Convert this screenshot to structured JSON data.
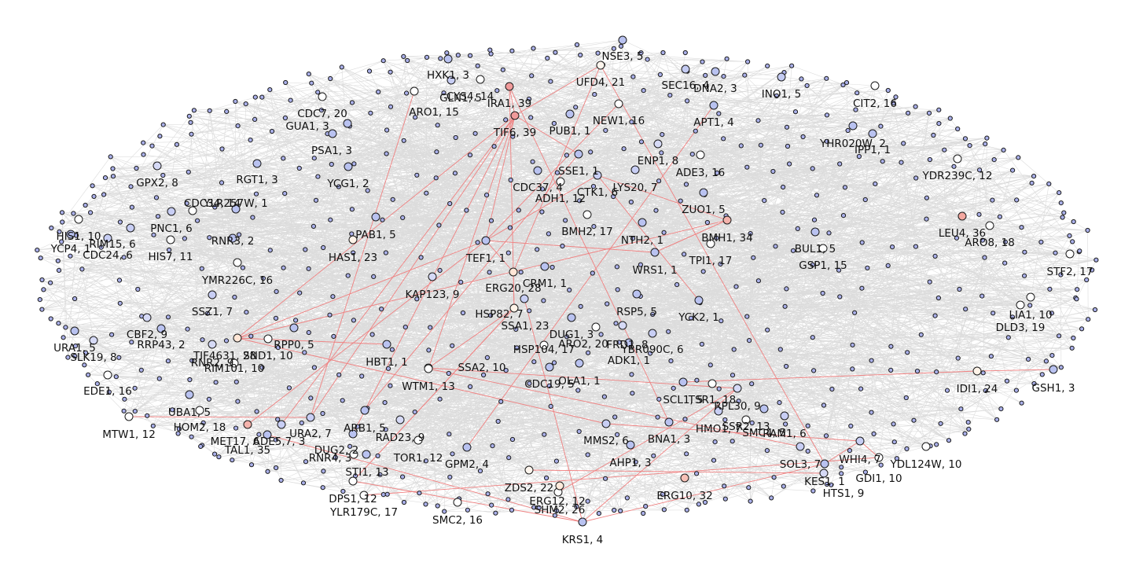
{
  "colors": {
    "background": "#ffffff",
    "edge_gray": "#dcdcdc",
    "edge_red": "#f08080",
    "node_stroke": "#1a1a1a",
    "small_node": "#aab0ea",
    "label_text": "#111111"
  },
  "graph": {
    "labeled_nodes": [
      {
        "label": "NSE3, 5",
        "fill": "#b9c2f0"
      },
      {
        "label": "HXK1, 3",
        "fill": "#b9c2f0"
      },
      {
        "label": "UFD4, 21",
        "fill": "#fff6ee"
      },
      {
        "label": "CYS4, 14",
        "fill": "#ffffff"
      },
      {
        "label": "SEC16, 4",
        "fill": "#c4cbf2"
      },
      {
        "label": "DNA2, 3",
        "fill": "#b9c2f0"
      },
      {
        "label": "GLN1, 5",
        "fill": "#c8cef4"
      },
      {
        "label": "IRA1, 39",
        "fill": "#f09a9a"
      },
      {
        "label": "INO1, 5",
        "fill": "#c4cbf2"
      },
      {
        "label": "ARO1, 15",
        "fill": "#ffffff"
      },
      {
        "label": "CIT2, 16",
        "fill": "#ffffff"
      },
      {
        "label": "CDC7, 20",
        "fill": "#ffffff"
      },
      {
        "label": "NEW1, 16",
        "fill": "#ffffff"
      },
      {
        "label": "APT1, 4",
        "fill": "#b9c2f0"
      },
      {
        "label": "PUB1, 1",
        "fill": "#b9c2f0"
      },
      {
        "label": "GUA1, 3",
        "fill": "#b9c2f0"
      },
      {
        "label": "TIF6, 39",
        "fill": "#f09a9a"
      },
      {
        "label": "YHR020W, 2",
        "fill": "#b9c2f0"
      },
      {
        "label": "IPP1, 1",
        "fill": "#b9c2f0"
      },
      {
        "label": "PSA1, 3",
        "fill": "#b9c2f0"
      },
      {
        "label": "ENP1, 8",
        "fill": "#d6daf6"
      },
      {
        "label": "ADE3, 16",
        "fill": "#ffffff"
      },
      {
        "label": "SSE1, 1",
        "fill": "#b9c2f0"
      },
      {
        "label": "GPX2, 8",
        "fill": "#d6daf6"
      },
      {
        "label": "RGT1, 3",
        "fill": "#b9c2f0"
      },
      {
        "label": "YDR239C, 12",
        "fill": "#ffffff"
      },
      {
        "label": "LYS20, 7",
        "fill": "#c8cef4"
      },
      {
        "label": "YCG1, 2",
        "fill": "#b9c2f0"
      },
      {
        "label": "CDC37, 4",
        "fill": "#b9c2f0"
      },
      {
        "label": "CTK1, 6",
        "fill": "#c8cef4"
      },
      {
        "label": "ADH1, 12",
        "fill": "#ffffff"
      },
      {
        "label": "YLR257W, 1",
        "fill": "#b9c2f0"
      },
      {
        "label": "ZUO1, 5",
        "fill": "#b9c2f0"
      },
      {
        "label": "CDC34, 14",
        "fill": "#ffffff"
      },
      {
        "label": "PNC1, 6",
        "fill": "#c8cef4"
      },
      {
        "label": "BMH2, 17",
        "fill": "#ffffff"
      },
      {
        "label": "HIS1, 10",
        "fill": "#ffffff"
      },
      {
        "label": "BMH1, 34",
        "fill": "#f4b3ac"
      },
      {
        "label": "LEU4, 36",
        "fill": "#f4a8a0"
      },
      {
        "label": "RIM15, 6",
        "fill": "#c8cef4"
      },
      {
        "label": "RNR3, 2",
        "fill": "#b9c2f0"
      },
      {
        "label": "PAB1, 5",
        "fill": "#b9c2f0"
      },
      {
        "label": "NTH2, 1",
        "fill": "#b9c2f0"
      },
      {
        "label": "ARO8, 18",
        "fill": "#ffffff"
      },
      {
        "label": "YCP4, 1",
        "fill": "#b9c2f0"
      },
      {
        "label": "BUL1, 5",
        "fill": "#b9c2f0"
      },
      {
        "label": "CDC24, 6",
        "fill": "#c8cef4"
      },
      {
        "label": "HIS7, 11",
        "fill": "#ffffff"
      },
      {
        "label": "HAS1, 23",
        "fill": "#fff3e8"
      },
      {
        "label": "TEF1, 1",
        "fill": "#b9c2f0"
      },
      {
        "label": "TPI1, 17",
        "fill": "#ffffff"
      },
      {
        "label": "GSP1, 15",
        "fill": "#ffffff"
      },
      {
        "label": "STF2, 17",
        "fill": "#ffffff"
      },
      {
        "label": "WRS1, 1",
        "fill": "#b9c2f0"
      },
      {
        "label": "YMR226C, 16",
        "fill": "#ffffff"
      },
      {
        "label": "CRM1, 1",
        "fill": "#b9c2f0"
      },
      {
        "label": "ERG20, 28",
        "fill": "#ffe6d6"
      },
      {
        "label": "KAP123, 9",
        "fill": "#d6daf6"
      },
      {
        "label": "SSZ1, 7",
        "fill": "#c8cef4"
      },
      {
        "label": "RSP5, 5",
        "fill": "#b9c2f0"
      },
      {
        "label": "HSP82, 7",
        "fill": "#c8cef4"
      },
      {
        "label": "YCK2, 1",
        "fill": "#b9c2f0"
      },
      {
        "label": "LIA1, 10",
        "fill": "#ffffff"
      },
      {
        "label": "SSA1, 23",
        "fill": "#fff3e8"
      },
      {
        "label": "DLD3, 19",
        "fill": "#ffffff"
      },
      {
        "label": "CBF2, 9",
        "fill": "#d6daf6"
      },
      {
        "label": "RRP43, 2",
        "fill": "#b9c2f0"
      },
      {
        "label": "DUG1, 3",
        "fill": "#b9c2f0"
      },
      {
        "label": "URA1, 5",
        "fill": "#b9c2f0"
      },
      {
        "label": "RPP0, 5",
        "fill": "#b9c2f0"
      },
      {
        "label": "ARO2, 20",
        "fill": "#ffffff"
      },
      {
        "label": "FRD1, 8",
        "fill": "#d6daf6"
      },
      {
        "label": "TIF4631, 28",
        "fill": "#ffe6d6"
      },
      {
        "label": "SND1, 10",
        "fill": "#ffffff"
      },
      {
        "label": "HSP104, 17",
        "fill": "#ffffff"
      },
      {
        "label": "YBR090C, 6",
        "fill": "#c8cef4"
      },
      {
        "label": "SLK19, 8",
        "fill": "#d6daf6"
      },
      {
        "label": "RNR2, 9",
        "fill": "#d6daf6"
      },
      {
        "label": "HBT1, 1",
        "fill": "#b9c2f0"
      },
      {
        "label": "ADK1, 1",
        "fill": "#b9c2f0"
      },
      {
        "label": "RIM101, 10",
        "fill": "#ffffff"
      },
      {
        "label": "SSA2, 10",
        "fill": "#ffffff"
      },
      {
        "label": "IDI1, 24",
        "fill": "#fff3e8"
      },
      {
        "label": "GSH1, 3",
        "fill": "#b9c2f0"
      },
      {
        "label": "EDE1, 16",
        "fill": "#ffffff"
      },
      {
        "label": "WTM1, 13",
        "fill": "#ffffff"
      },
      {
        "label": "CDC19, 5",
        "fill": "#b9c2f0"
      },
      {
        "label": "OLA1, 1",
        "fill": "#b9c2f0"
      },
      {
        "label": "SCL1, 5",
        "fill": "#b9c2f0"
      },
      {
        "label": "TSR1, 18",
        "fill": "#ffffff"
      },
      {
        "label": "RPL30, 9",
        "fill": "#d6daf6"
      },
      {
        "label": "UBA1, 5",
        "fill": "#b9c2f0"
      },
      {
        "label": "MTW1, 12",
        "fill": "#ffffff"
      },
      {
        "label": "HOM2, 18",
        "fill": "#ffffff"
      },
      {
        "label": "ARB1, 5",
        "fill": "#b9c2f0"
      },
      {
        "label": "HMO1, 7",
        "fill": "#c8cef4"
      },
      {
        "label": "SSR2, 13",
        "fill": "#ffffff"
      },
      {
        "label": "SMC4, 5",
        "fill": "#b9c2f0"
      },
      {
        "label": "RAM1, 6",
        "fill": "#c8cef4"
      },
      {
        "label": "URA2, 7",
        "fill": "#c8cef4"
      },
      {
        "label": "MET17, 6",
        "fill": "#c8cef4"
      },
      {
        "label": "ADE5,7, 3",
        "fill": "#b9c2f0"
      },
      {
        "label": "RAD23, 9",
        "fill": "#d6daf6"
      },
      {
        "label": "MMS2, 6",
        "fill": "#c8cef4"
      },
      {
        "label": "BNA1, 3",
        "fill": "#b9c2f0"
      },
      {
        "label": "TAL1, 35",
        "fill": "#f4b3ac"
      },
      {
        "label": "DUG2, 2",
        "fill": "#b9c2f0"
      },
      {
        "label": "RNR4, 3",
        "fill": "#b9c2f0"
      },
      {
        "label": "TOR1, 12",
        "fill": "#ffffff"
      },
      {
        "label": "GPM2, 4",
        "fill": "#b9c2f0"
      },
      {
        "label": "AHP1, 3",
        "fill": "#b9c2f0"
      },
      {
        "label": "SOL3, 7",
        "fill": "#c8cef4"
      },
      {
        "label": "WHI4, 7",
        "fill": "#c8cef4"
      },
      {
        "label": "YDL124W, 10",
        "fill": "#ffffff"
      },
      {
        "label": "STI1, 13",
        "fill": "#ffffff"
      },
      {
        "label": "KES1, 1",
        "fill": "#b9c2f0"
      },
      {
        "label": "GDI1, 10",
        "fill": "#ffffff"
      },
      {
        "label": "DPS1, 12",
        "fill": "#ffffff"
      },
      {
        "label": "ZDS2, 22",
        "fill": "#fff6ee"
      },
      {
        "label": "ERG10, 32",
        "fill": "#f6c0b6"
      },
      {
        "label": "HTS1, 9",
        "fill": "#d6daf6"
      },
      {
        "label": "ERG12, 12",
        "fill": "#ffffff"
      },
      {
        "label": "YLR179C, 17",
        "fill": "#ffffff"
      },
      {
        "label": "SHM2, 26",
        "fill": "#ffeadc"
      },
      {
        "label": "SMC2, 16",
        "fill": "#ffffff"
      },
      {
        "label": "KRS1, 4",
        "fill": "#b9c2f0"
      }
    ]
  }
}
